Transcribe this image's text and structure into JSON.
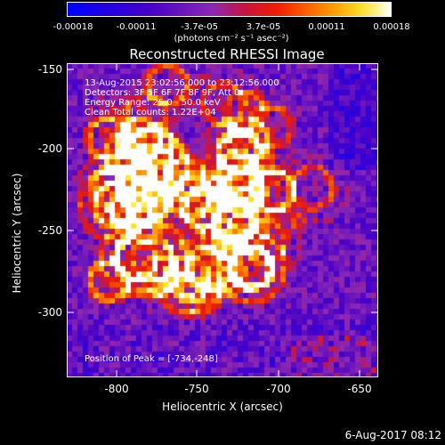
{
  "colorbar": {
    "ticks": [
      "-0.00018",
      "-0.00011",
      "-3.7e-05",
      "3.7e-05",
      "0.00011",
      "0.00018"
    ],
    "units": "(photons cm⁻² s⁻¹ asec⁻²)"
  },
  "title": "Reconstructed RHESSI Image",
  "annotations": {
    "time": "13-Aug-2015 23:02:56.000 to 23:12:56.000",
    "detectors": "Detectors: 3F 5F 6F 7F 8F 9F, Att 0",
    "energy": "Energy Range: 25.0 - 50.0 keV",
    "clean": "Clean    Total counts: 1.22E+04",
    "peak": "Position of Peak = [-734,-248]"
  },
  "axes": {
    "xlabel": "Heliocentric X (arcsec)",
    "ylabel": "Heliocentric Y (arcsec)",
    "xticks": [
      "-800",
      "-750",
      "-700",
      "-650"
    ],
    "yticks": [
      "-150",
      "-200",
      "-250",
      "-300"
    ]
  },
  "footer": "6-Aug-2017 08:12"
}
